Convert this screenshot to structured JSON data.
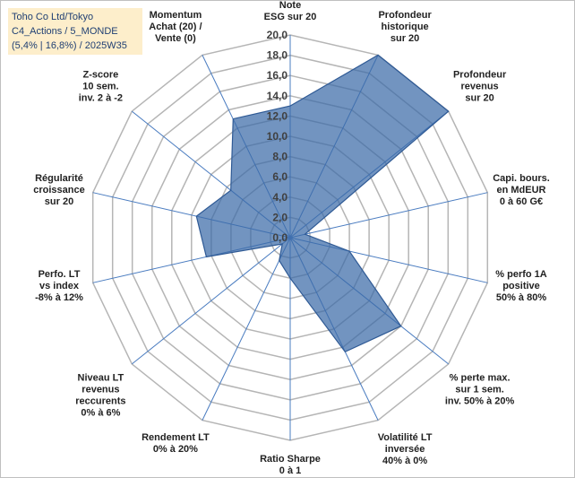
{
  "chart_data": {
    "type": "radar",
    "title_lines": [
      "Toho Co Ltd/Tokyo",
      "C4_Actions / 5_MONDE",
      "(5,4% | 16,8%) / 2025W35"
    ],
    "rlim": [
      0,
      20
    ],
    "tick_labels": [
      "0,0",
      "2,0",
      "4,0",
      "6,0",
      "8,0",
      "10,0",
      "12,0",
      "14,0",
      "16,0",
      "18,0",
      "20,0"
    ],
    "categories": [
      [
        "Note",
        "ESG sur 20"
      ],
      [
        "Profondeur",
        "historique",
        "sur 20"
      ],
      [
        "Profondeur",
        "revenus",
        "sur 20"
      ],
      [
        "Capi. bours.",
        "en MdEUR",
        "0 à 60 G€"
      ],
      [
        "% perfo 1A",
        "positive",
        "50% à 80%"
      ],
      [
        "% perte max.",
        "sur 1 sem.",
        "inv. 50% à 20%"
      ],
      [
        "Volatilité LT",
        "inversée",
        "40% à 0%"
      ],
      [
        "Ratio Sharpe",
        "0 à 1"
      ],
      [
        "Rendement LT",
        "0% à 20%"
      ],
      [
        "Niveau LT",
        "revenus",
        "reccurents",
        "0% à 6%"
      ],
      [
        "Perfo. LT",
        "vs index",
        "-8% à 12%"
      ],
      [
        "Régularité",
        "croissance",
        "sur 20"
      ],
      [
        "Z-score",
        "10 sem.",
        "inv. 2 à -2"
      ],
      [
        "Momentum",
        "Achat (20) /",
        "Vente (0)"
      ]
    ],
    "values": [
      13.0,
      20.0,
      20.0,
      1.5,
      6.0,
      14.0,
      12.5,
      4.0,
      2.5,
      1.0,
      8.5,
      9.5,
      7.5,
      13.0
    ],
    "colors": {
      "area": "#3c6ba8",
      "ring": "#b5b5b5",
      "spoke": "#4a7cc0",
      "title_bg": "#fdeecb"
    }
  }
}
